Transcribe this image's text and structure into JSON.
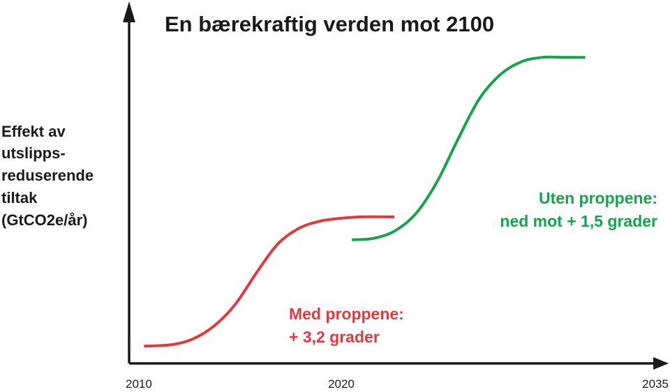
{
  "chart_data": {
    "type": "line",
    "title": "En bærekraftig verden mot 2100",
    "ylabel_lines": [
      "Effekt av",
      "utslipps-",
      "reduserende",
      "tiltak",
      "(GtCO2e/år)"
    ],
    "xlabel": "",
    "x_ticks": [
      {
        "label": "2010",
        "value": 2010
      },
      {
        "label": "2020",
        "value": 2020
      },
      {
        "label": "2035",
        "value": 2035
      }
    ],
    "xlim": [
      2010,
      2035
    ],
    "grid": false,
    "series": [
      {
        "name": "Med proppene",
        "color": "#e0393e",
        "x": [
          2010.7,
          2012,
          2013,
          2014,
          2015,
          2016,
          2017,
          2018,
          2019,
          2020,
          2021,
          2022.5
        ],
        "y": [
          0.12,
          0.13,
          0.17,
          0.26,
          0.41,
          0.63,
          0.83,
          0.94,
          0.99,
          1.01,
          1.02,
          1.02
        ]
      },
      {
        "name": "Uten proppene",
        "color": "#16a34a",
        "x": [
          2020.5,
          2021.5,
          2022.5,
          2023.5,
          2024.5,
          2025.5,
          2026.5,
          2027.5,
          2028.5,
          2029.5,
          2030.5,
          2031.5
        ],
        "y": [
          0.86,
          0.87,
          0.92,
          1.04,
          1.26,
          1.56,
          1.84,
          2.01,
          2.1,
          2.13,
          2.13,
          2.13
        ]
      }
    ],
    "annotations": [
      {
        "name": "med",
        "lines": [
          "Med proppene:",
          "+ 3,2 grader"
        ],
        "color": "#e0393e"
      },
      {
        "name": "uten",
        "lines": [
          "Uten proppene:",
          "ned mot + 1,5 grader"
        ],
        "color": "#16a34a"
      }
    ]
  },
  "colors": {
    "axis": "#1a1a1a",
    "text": "#1a1a1a"
  }
}
